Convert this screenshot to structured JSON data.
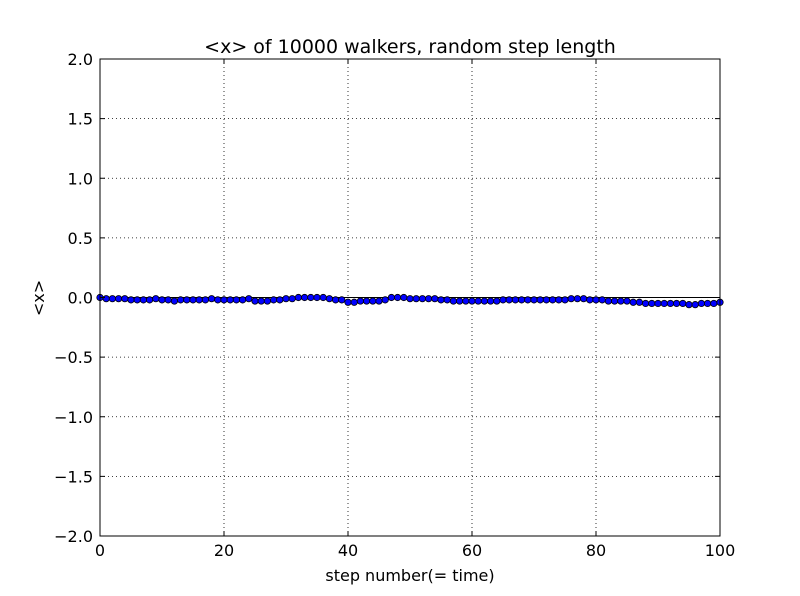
{
  "chart_data": {
    "type": "line",
    "title": "<x> of 10000 walkers, random step length",
    "xlabel": "step number(= time)",
    "ylabel": "<x>",
    "xlim": [
      0,
      100
    ],
    "ylim": [
      -2.0,
      2.0
    ],
    "xticks": [
      "0",
      "20",
      "40",
      "60",
      "80",
      "100"
    ],
    "xtick_values": [
      0,
      20,
      40,
      60,
      80,
      100
    ],
    "yticks": [
      "2.0",
      "1.5",
      "1.0",
      "0.5",
      "0.0",
      "−0.5",
      "−1.0",
      "−1.5",
      "−2.0"
    ],
    "ytick_values": [
      2.0,
      1.5,
      1.0,
      0.5,
      0.0,
      -0.5,
      -1.0,
      -1.5,
      -2.0
    ],
    "grid": true,
    "reference_line": {
      "y": 0,
      "color": "#000000"
    },
    "series": [
      {
        "marker": "circle",
        "color": "#0000ff",
        "x": [
          0,
          1,
          2,
          3,
          4,
          5,
          6,
          7,
          8,
          9,
          10,
          11,
          12,
          13,
          14,
          15,
          16,
          17,
          18,
          19,
          20,
          21,
          22,
          23,
          24,
          25,
          26,
          27,
          28,
          29,
          30,
          31,
          32,
          33,
          34,
          35,
          36,
          37,
          38,
          39,
          40,
          41,
          42,
          43,
          44,
          45,
          46,
          47,
          48,
          49,
          50,
          51,
          52,
          53,
          54,
          55,
          56,
          57,
          58,
          59,
          60,
          61,
          62,
          63,
          64,
          65,
          66,
          67,
          68,
          69,
          70,
          71,
          72,
          73,
          74,
          75,
          76,
          77,
          78,
          79,
          80,
          81,
          82,
          83,
          84,
          85,
          86,
          87,
          88,
          89,
          90,
          91,
          92,
          93,
          94,
          95,
          96,
          97,
          98,
          99,
          100
        ],
        "y": [
          0.0,
          -0.01,
          -0.01,
          -0.01,
          -0.01,
          -0.02,
          -0.02,
          -0.02,
          -0.02,
          -0.01,
          -0.02,
          -0.02,
          -0.03,
          -0.02,
          -0.02,
          -0.02,
          -0.02,
          -0.02,
          -0.01,
          -0.02,
          -0.02,
          -0.02,
          -0.02,
          -0.02,
          -0.01,
          -0.03,
          -0.03,
          -0.03,
          -0.02,
          -0.02,
          -0.01,
          -0.01,
          0.0,
          0.0,
          0.0,
          0.0,
          0.0,
          -0.01,
          -0.02,
          -0.02,
          -0.04,
          -0.04,
          -0.03,
          -0.03,
          -0.03,
          -0.03,
          -0.02,
          0.0,
          0.0,
          0.0,
          -0.01,
          -0.01,
          -0.01,
          -0.01,
          -0.01,
          -0.02,
          -0.02,
          -0.03,
          -0.03,
          -0.03,
          -0.03,
          -0.03,
          -0.03,
          -0.03,
          -0.03,
          -0.02,
          -0.02,
          -0.02,
          -0.02,
          -0.02,
          -0.02,
          -0.02,
          -0.02,
          -0.02,
          -0.02,
          -0.02,
          -0.01,
          -0.01,
          -0.01,
          -0.02,
          -0.02,
          -0.02,
          -0.03,
          -0.03,
          -0.03,
          -0.03,
          -0.04,
          -0.04,
          -0.05,
          -0.05,
          -0.05,
          -0.05,
          -0.05,
          -0.05,
          -0.05,
          -0.06,
          -0.06,
          -0.05,
          -0.05,
          -0.05,
          -0.04
        ]
      }
    ]
  }
}
